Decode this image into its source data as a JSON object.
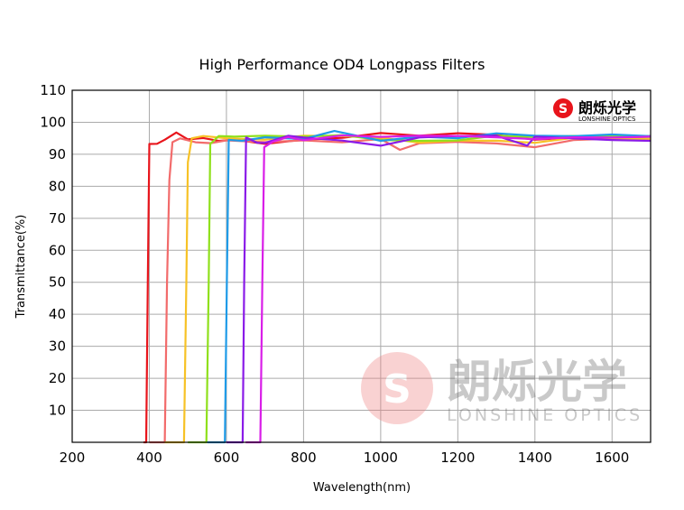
{
  "chart_data": {
    "type": "line",
    "title": "High Performance OD4 Longpass Filters",
    "xlabel": "Wavelength(nm)",
    "ylabel": "Transmittance(%)",
    "xlim": [
      200,
      1700
    ],
    "ylim": [
      0,
      110
    ],
    "xticks": [
      200,
      400,
      600,
      800,
      1000,
      1200,
      1400,
      1600
    ],
    "yticks": [
      10,
      20,
      30,
      40,
      50,
      60,
      70,
      80,
      90,
      100,
      110
    ],
    "grid": true,
    "series": [
      {
        "color": "#e8141b",
        "points": [
          [
            385,
            0
          ],
          [
            392,
            0
          ],
          [
            396,
            50
          ],
          [
            400,
            93
          ],
          [
            420,
            94
          ],
          [
            440,
            95
          ],
          [
            470,
            96
          ],
          [
            500,
            95
          ],
          [
            540,
            95
          ],
          [
            580,
            94
          ],
          [
            620,
            95
          ],
          [
            700,
            94
          ],
          [
            800,
            95
          ],
          [
            900,
            95
          ],
          [
            1000,
            96
          ],
          [
            1100,
            95
          ],
          [
            1200,
            96
          ],
          [
            1300,
            96
          ],
          [
            1400,
            95
          ],
          [
            1500,
            96
          ],
          [
            1600,
            96
          ],
          [
            1700,
            96
          ]
        ]
      },
      {
        "color": "#f26b6b",
        "points": [
          [
            400,
            0
          ],
          [
            440,
            0
          ],
          [
            446,
            50
          ],
          [
            452,
            82
          ],
          [
            460,
            93
          ],
          [
            480,
            95
          ],
          [
            520,
            94
          ],
          [
            560,
            93
          ],
          [
            600,
            95
          ],
          [
            700,
            94
          ],
          [
            800,
            94
          ],
          [
            900,
            93
          ],
          [
            1000,
            94
          ],
          [
            1050,
            92
          ],
          [
            1100,
            93
          ],
          [
            1200,
            94
          ],
          [
            1300,
            94
          ],
          [
            1400,
            93
          ],
          [
            1500,
            95
          ],
          [
            1600,
            95
          ],
          [
            1700,
            95
          ]
        ]
      },
      {
        "color": "#f7c226",
        "points": [
          [
            440,
            0
          ],
          [
            490,
            0
          ],
          [
            496,
            50
          ],
          [
            500,
            88
          ],
          [
            510,
            95
          ],
          [
            540,
            95
          ],
          [
            600,
            95
          ],
          [
            700,
            94
          ],
          [
            800,
            95
          ],
          [
            900,
            95
          ],
          [
            1000,
            95
          ],
          [
            1100,
            94
          ],
          [
            1200,
            95
          ],
          [
            1300,
            95
          ],
          [
            1400,
            94
          ],
          [
            1500,
            95
          ],
          [
            1600,
            94
          ],
          [
            1700,
            94
          ]
        ]
      },
      {
        "color": "#8fe01c",
        "points": [
          [
            500,
            0
          ],
          [
            548,
            0
          ],
          [
            554,
            50
          ],
          [
            558,
            94
          ],
          [
            580,
            96
          ],
          [
            620,
            95
          ],
          [
            700,
            95
          ],
          [
            800,
            95
          ],
          [
            900,
            96
          ],
          [
            1000,
            95
          ],
          [
            1100,
            95
          ],
          [
            1200,
            95
          ],
          [
            1300,
            96
          ],
          [
            1400,
            95
          ],
          [
            1500,
            95
          ],
          [
            1600,
            95
          ],
          [
            1700,
            95
          ]
        ]
      },
      {
        "color": "#1e9be8",
        "points": [
          [
            550,
            0
          ],
          [
            596,
            0
          ],
          [
            601,
            50
          ],
          [
            606,
            94
          ],
          [
            640,
            95
          ],
          [
            700,
            95
          ],
          [
            800,
            95
          ],
          [
            880,
            97
          ],
          [
            1000,
            95
          ],
          [
            1100,
            96
          ],
          [
            1200,
            95
          ],
          [
            1300,
            96
          ],
          [
            1400,
            95
          ],
          [
            1500,
            95
          ],
          [
            1600,
            96
          ],
          [
            1700,
            96
          ]
        ]
      },
      {
        "color": "#8a1be8",
        "points": [
          [
            600,
            0
          ],
          [
            642,
            0
          ],
          [
            646,
            50
          ],
          [
            651,
            95
          ],
          [
            680,
            93
          ],
          [
            700,
            94
          ],
          [
            760,
            95
          ],
          [
            800,
            96
          ],
          [
            900,
            95
          ],
          [
            1000,
            93
          ],
          [
            1100,
            95
          ],
          [
            1200,
            95
          ],
          [
            1300,
            95
          ],
          [
            1380,
            92
          ],
          [
            1400,
            95
          ],
          [
            1500,
            95
          ],
          [
            1600,
            95
          ],
          [
            1700,
            95
          ]
        ]
      },
      {
        "color": "#d91ee8",
        "points": [
          [
            650,
            0
          ],
          [
            688,
            0
          ],
          [
            693,
            50
          ],
          [
            698,
            93
          ],
          [
            720,
            94
          ],
          [
            760,
            95
          ],
          [
            800,
            95
          ],
          [
            900,
            96
          ],
          [
            1000,
            95
          ],
          [
            1100,
            95
          ],
          [
            1200,
            95
          ],
          [
            1300,
            95
          ],
          [
            1400,
            95
          ],
          [
            1500,
            96
          ],
          [
            1600,
            96
          ],
          [
            1700,
            96
          ]
        ]
      }
    ]
  },
  "logo": {
    "name_cn": "朗烁光学",
    "name_en": "LONSHINE OPTICS",
    "color": "#e8141b"
  },
  "watermark": {
    "name_cn": "朗烁光学",
    "name_en": "LONSHINE OPTICS"
  }
}
